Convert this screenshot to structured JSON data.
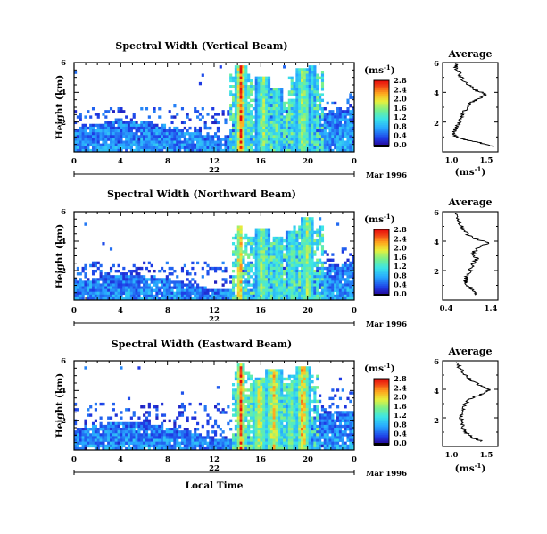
{
  "common": {
    "time_ticks": [
      "0",
      "4",
      "8",
      "12",
      "16",
      "20",
      "0"
    ],
    "height_ticks": [
      "6",
      "4",
      "2"
    ],
    "date_day": "22",
    "date_label": "Mar 1996",
    "ylabel": "Height (km)",
    "xlabel": "Local Time",
    "colorbar_unit": "(ms",
    "colorbar_unit_exp": "-1",
    "colorbar_unit_close": ")",
    "avg_title": "Average",
    "avg_unit": "(ms",
    "avg_unit_exp": "-1",
    "avg_unit_close": ")"
  },
  "chart_data": [
    {
      "type": "heatmap",
      "title": "Spectral Width (Vertical Beam)",
      "ylabel": "Height (km)",
      "x_range_hours": [
        0,
        24
      ],
      "y_range_km": [
        0,
        6
      ],
      "colorbar_ticks": [
        "2.8",
        "2.4",
        "2.0",
        "1.6",
        "1.2",
        "0.8",
        "0.4",
        "0.0"
      ],
      "colorbar_range": [
        0,
        3.0
      ],
      "base_height_km": 1.5,
      "noise_height_km": 3.0,
      "convective_cells": [
        {
          "t": 14.3,
          "w": 0.45,
          "top": 5.8,
          "val": 3.0
        },
        {
          "t": 16.2,
          "w": 0.6,
          "top": 5.0,
          "val": 2.0
        },
        {
          "t": 17.4,
          "w": 0.5,
          "top": 4.3,
          "val": 1.6
        },
        {
          "t": 18.8,
          "w": 0.5,
          "top": 3.6,
          "val": 1.3
        },
        {
          "t": 19.6,
          "w": 0.6,
          "top": 5.6,
          "val": 2.0
        },
        {
          "t": 20.4,
          "w": 0.4,
          "top": 5.9,
          "val": 1.2
        }
      ]
    },
    {
      "type": "heatmap",
      "title": "Spectral Width (Northward Beam)",
      "ylabel": "Height (km)",
      "x_range_hours": [
        0,
        24
      ],
      "y_range_km": [
        0,
        6
      ],
      "colorbar_ticks": [
        "2.8",
        "2.4",
        "2.0",
        "1.6",
        "1.2",
        "0.8",
        "0.4",
        "0.0"
      ],
      "colorbar_range": [
        0,
        3.0
      ],
      "base_height_km": 1.2,
      "noise_height_km": 2.6,
      "convective_cells": [
        {
          "t": 14.2,
          "w": 0.3,
          "top": 5.0,
          "val": 2.8
        },
        {
          "t": 16.1,
          "w": 0.6,
          "top": 4.8,
          "val": 2.0
        },
        {
          "t": 17.5,
          "w": 0.5,
          "top": 4.4,
          "val": 1.6
        },
        {
          "t": 18.7,
          "w": 0.5,
          "top": 4.6,
          "val": 1.7
        },
        {
          "t": 20.0,
          "w": 0.6,
          "top": 5.6,
          "val": 2.0
        }
      ]
    },
    {
      "type": "heatmap",
      "title": "Spectral Width (Eastward Beam)",
      "ylabel": "Height (km)",
      "x_range_hours": [
        0,
        24
      ],
      "y_range_km": [
        0,
        6
      ],
      "colorbar_ticks": [
        "2.8",
        "2.4",
        "2.0",
        "1.6",
        "1.2",
        "0.8",
        "0.4",
        "0.0"
      ],
      "colorbar_range": [
        0,
        3.0
      ],
      "base_height_km": 1.3,
      "noise_height_km": 3.2,
      "convective_cells": [
        {
          "t": 14.3,
          "w": 0.4,
          "top": 5.8,
          "val": 2.9
        },
        {
          "t": 15.9,
          "w": 0.7,
          "top": 4.7,
          "val": 2.2
        },
        {
          "t": 17.1,
          "w": 0.7,
          "top": 5.4,
          "val": 2.4
        },
        {
          "t": 18.6,
          "w": 0.5,
          "top": 4.3,
          "val": 1.8
        },
        {
          "t": 19.6,
          "w": 0.6,
          "top": 5.6,
          "val": 2.6
        }
      ]
    },
    {
      "type": "line",
      "title": "Average",
      "xlabel": "(ms-1)",
      "xlim": [
        0.8,
        1.6
      ],
      "x_ticks": [
        "1.0",
        "1.5"
      ],
      "ylim": [
        0,
        6
      ],
      "y_ticks": [
        "6",
        "4",
        "2"
      ],
      "profile": [
        [
          0.35,
          1.55
        ],
        [
          0.6,
          1.35
        ],
        [
          0.8,
          1.15
        ],
        [
          1.0,
          1.0
        ],
        [
          1.2,
          0.95
        ],
        [
          1.5,
          0.98
        ],
        [
          1.8,
          1.02
        ],
        [
          2.0,
          1.05
        ],
        [
          2.3,
          1.08
        ],
        [
          2.6,
          1.1
        ],
        [
          3.0,
          1.14
        ],
        [
          3.3,
          1.2
        ],
        [
          3.6,
          1.35
        ],
        [
          3.9,
          1.42
        ],
        [
          4.1,
          1.3
        ],
        [
          4.4,
          1.2
        ],
        [
          4.8,
          1.1
        ],
        [
          5.2,
          1.05
        ],
        [
          5.6,
          1.0
        ],
        [
          5.9,
          0.98
        ]
      ]
    },
    {
      "type": "line",
      "title": "Average",
      "xlabel": "(ms-1)",
      "xlim": [
        0.3,
        1.5
      ],
      "x_ticks": [
        "0.4",
        "1.4"
      ],
      "ylim": [
        0,
        6
      ],
      "y_ticks": [
        "6",
        "4",
        "2"
      ],
      "profile": [
        [
          0.35,
          1.05
        ],
        [
          0.7,
          0.95
        ],
        [
          1.0,
          0.85
        ],
        [
          1.3,
          0.8
        ],
        [
          1.6,
          0.82
        ],
        [
          2.0,
          0.9
        ],
        [
          2.4,
          0.95
        ],
        [
          2.8,
          1.05
        ],
        [
          3.2,
          0.95
        ],
        [
          3.6,
          1.1
        ],
        [
          3.9,
          1.3
        ],
        [
          4.2,
          0.95
        ],
        [
          4.6,
          0.8
        ],
        [
          5.0,
          0.7
        ],
        [
          5.5,
          0.62
        ],
        [
          5.9,
          0.58
        ]
      ]
    },
    {
      "type": "line",
      "title": "Average",
      "xlabel": "(ms-1)",
      "xlim": [
        0.8,
        1.7
      ],
      "x_ticks": [
        "1.0",
        "1.5"
      ],
      "ylim": [
        0,
        6
      ],
      "y_ticks": [
        "6",
        "4",
        "2"
      ],
      "profile": [
        [
          0.35,
          1.45
        ],
        [
          0.6,
          1.3
        ],
        [
          0.9,
          1.2
        ],
        [
          1.2,
          1.15
        ],
        [
          1.6,
          1.12
        ],
        [
          2.0,
          1.1
        ],
        [
          2.4,
          1.12
        ],
        [
          2.8,
          1.15
        ],
        [
          3.2,
          1.2
        ],
        [
          3.5,
          1.35
        ],
        [
          3.8,
          1.5
        ],
        [
          4.0,
          1.55
        ],
        [
          4.3,
          1.4
        ],
        [
          4.7,
          1.25
        ],
        [
          5.1,
          1.15
        ],
        [
          5.5,
          1.08
        ],
        [
          5.9,
          1.02
        ]
      ]
    }
  ]
}
